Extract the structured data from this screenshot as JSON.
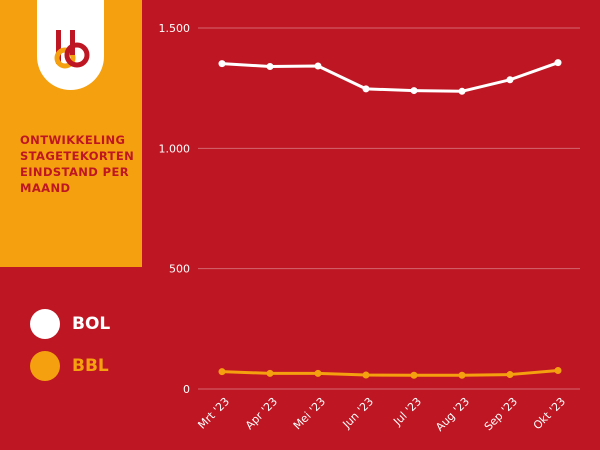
{
  "title": "ONTWIKKELING STAGETEKORTEN EINDSTAND PER MAAND",
  "legend": [
    {
      "label": "BOL",
      "color": "#ffffff"
    },
    {
      "label": "BBL",
      "color": "#f4a00f"
    }
  ],
  "chart_data": {
    "type": "line",
    "categories": [
      "Mrt '23",
      "Apr '23",
      "Mei '23",
      "Jun '23",
      "Jul '23",
      "Aug '23",
      "Sep '23",
      "Okt '23"
    ],
    "series": [
      {
        "name": "BOL",
        "color": "#ffffff",
        "values": [
          1352,
          1340,
          1342,
          1247,
          1240,
          1237,
          1285,
          1356
        ]
      },
      {
        "name": "BBL",
        "color": "#f4a00f",
        "values": [
          72,
          65,
          65,
          58,
          57,
          57,
          60,
          77
        ]
      }
    ],
    "y_ticks": [
      {
        "value": 0,
        "label": "0"
      },
      {
        "value": 500,
        "label": "500"
      },
      {
        "value": 1000,
        "label": "1.000"
      },
      {
        "value": 1500,
        "label": "1.500"
      }
    ],
    "ylim": [
      0,
      1500
    ],
    "grid": true,
    "legend_position": "left"
  }
}
